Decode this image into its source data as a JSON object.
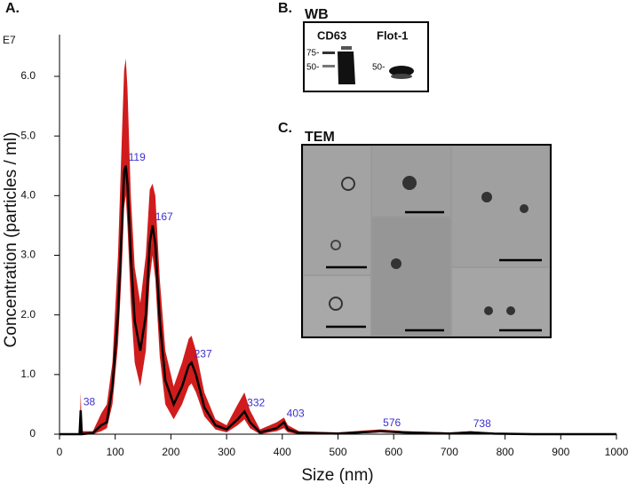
{
  "chart_data": {
    "type": "line",
    "exponent_label": "E7",
    "x_label": "Size (nm)",
    "y_label": "Concentration (particles / ml)",
    "x": [
      0,
      30,
      36,
      38,
      40,
      60,
      75,
      85,
      95,
      105,
      112,
      116,
      119,
      122,
      128,
      135,
      145,
      155,
      162,
      167,
      172,
      180,
      190,
      205,
      220,
      232,
      237,
      245,
      260,
      280,
      300,
      320,
      332,
      342,
      360,
      390,
      403,
      410,
      430,
      500,
      560,
      576,
      620,
      700,
      738,
      780,
      850,
      1000
    ],
    "series": [
      {
        "color": "#000000",
        "values": [
          0,
          0,
          0,
          0.4,
          0,
          0.02,
          0.15,
          0.2,
          0.8,
          2.0,
          3.5,
          4.4,
          4.5,
          4.2,
          3.0,
          1.9,
          1.4,
          2.0,
          3.2,
          3.5,
          3.2,
          1.9,
          0.9,
          0.5,
          0.8,
          1.15,
          1.2,
          1.0,
          0.45,
          0.15,
          0.08,
          0.25,
          0.38,
          0.2,
          0.03,
          0.1,
          0.2,
          0.08,
          0.02,
          0.01,
          0.04,
          0.05,
          0.03,
          0.01,
          0.03,
          0.01,
          0,
          0
        ]
      }
    ],
    "band": {
      "color": "#d01c1c",
      "upper": [
        0,
        0,
        0,
        0.7,
        0.05,
        0.05,
        0.35,
        0.5,
        1.2,
        3.0,
        5.0,
        6.1,
        6.3,
        5.8,
        4.0,
        2.8,
        2.2,
        3.0,
        4.1,
        4.2,
        4.0,
        2.6,
        1.4,
        0.8,
        1.2,
        1.6,
        1.65,
        1.4,
        0.7,
        0.25,
        0.15,
        0.5,
        0.7,
        0.4,
        0.08,
        0.2,
        0.28,
        0.15,
        0.05,
        0.03,
        0.07,
        0.08,
        0.05,
        0.03,
        0.05,
        0.02,
        0.01,
        0
      ],
      "lower": [
        0,
        0,
        0,
        0,
        0,
        0,
        0.05,
        0.1,
        0.5,
        1.5,
        2.8,
        3.8,
        4.0,
        3.5,
        2.2,
        1.2,
        0.8,
        1.4,
        2.6,
        3.0,
        2.6,
        1.3,
        0.5,
        0.25,
        0.5,
        0.8,
        0.85,
        0.7,
        0.3,
        0.08,
        0.03,
        0.15,
        0.25,
        0.1,
        0,
        0.05,
        0.1,
        0.03,
        0,
        0,
        0.02,
        0.03,
        0.01,
        0,
        0.01,
        0,
        0,
        0
      ]
    },
    "peak_labels": [
      38,
      119,
      167,
      237,
      332,
      403,
      576,
      738
    ],
    "peak_label_color": "#3a2fd0",
    "xlim": [
      0,
      1000
    ],
    "xticks": [
      0,
      100,
      200,
      300,
      400,
      500,
      600,
      700,
      800,
      900,
      1000
    ],
    "ylim": [
      0,
      6.7
    ],
    "yticks": [
      0,
      {
        "value": 1,
        "label": "1.0"
      },
      {
        "value": 2,
        "label": "2.0"
      },
      {
        "value": 3,
        "label": "3.0"
      },
      {
        "value": 4,
        "label": "4.0"
      },
      {
        "value": 5,
        "label": "5.0"
      },
      {
        "value": 6,
        "label": "6.0"
      }
    ]
  },
  "figure": {
    "panel_a": "A.",
    "panel_b": "B.",
    "panel_c": "C.",
    "wb_title": "WB",
    "tem_title": "TEM",
    "lane_1": "CD63",
    "lane_2": "Flot-1",
    "marker_75": "75-",
    "marker_50a": "50-",
    "marker_50b": "50-"
  }
}
